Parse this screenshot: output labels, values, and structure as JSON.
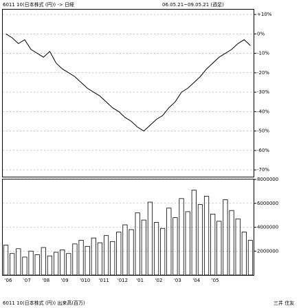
{
  "header": {
    "left": "6011 10(日本株式 (円)) -> 日経",
    "right": "06.05.21~09.05.21 (週足)"
  },
  "footer": {
    "left": "6011 10(日本株式 (円)) 出来高(百万)",
    "right": "三井 住友"
  },
  "chart_data": [
    {
      "type": "line",
      "color": "#000000",
      "values": [
        0,
        -2,
        -5,
        -3,
        -8,
        -10,
        -12,
        -9,
        -15,
        -18,
        -20,
        -22,
        -25,
        -28,
        -30,
        -32,
        -35,
        -38,
        -40,
        -43,
        -45,
        -48,
        -50,
        -47,
        -44,
        -42,
        -38,
        -35,
        -30,
        -28,
        -25,
        -22,
        -18,
        -15,
        -12,
        -10,
        -8,
        -5,
        -3,
        -6
      ],
      "ylim": [
        -73.5,
        12.5
      ],
      "yticks": [
        {
          "value": 10,
          "label": "+10%"
        },
        {
          "value": 0,
          "label": "0%"
        },
        {
          "value": -10,
          "label": "-10%"
        },
        {
          "value": -20,
          "label": "-20%"
        },
        {
          "value": -30,
          "label": "-30%"
        },
        {
          "value": -40,
          "label": "-40%"
        },
        {
          "value": -50,
          "label": "-50%"
        },
        {
          "value": -60,
          "label": "-60%"
        },
        {
          "value": -70,
          "label": "-70%"
        }
      ],
      "grid": true
    },
    {
      "type": "bar",
      "color": "#000000",
      "categories": [
        "'06",
        null,
        null,
        "'07",
        null,
        null,
        "'08",
        null,
        null,
        "'09",
        null,
        null,
        "'010",
        null,
        null,
        "'011",
        null,
        null,
        "'012",
        null,
        null,
        "'01",
        null,
        null,
        "'02",
        null,
        null,
        "'03",
        null,
        null,
        "'04",
        null,
        null,
        "'05",
        null,
        null,
        null,
        null,
        null,
        null
      ],
      "values": [
        2500000,
        1800000,
        2200000,
        1500000,
        2000000,
        1700000,
        2300000,
        1600000,
        1900000,
        2100000,
        1800000,
        2600000,
        2900000,
        2400000,
        3100000,
        2700000,
        3300000,
        2800000,
        3600000,
        4200000,
        3800000,
        5200000,
        4600000,
        6100000,
        4400000,
        3900000,
        5600000,
        4800000,
        6400000,
        5300000,
        7100000,
        5900000,
        6600000,
        5100000,
        4500000,
        6300000,
        5400000,
        4700000,
        3600000,
        2900000
      ],
      "ylim": [
        0,
        8000000
      ],
      "yticks": [
        2000000,
        4000000,
        6000000,
        8000000
      ],
      "grid": true
    }
  ]
}
